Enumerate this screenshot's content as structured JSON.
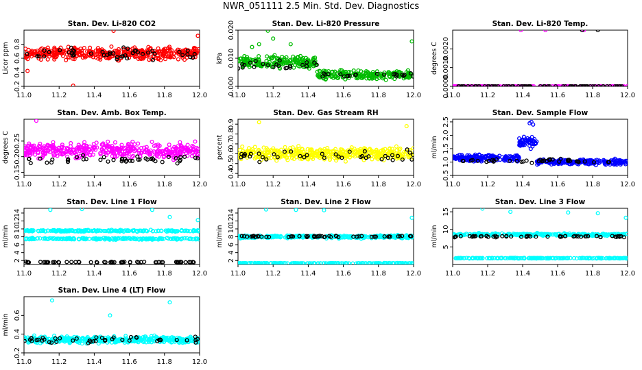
{
  "title": "NWR_051111  2.5 Min. Std. Dev. Diagnostics",
  "colors": {
    "co2": "#ff0000",
    "pressure": "#00bb00",
    "temp": "#ff00ff",
    "amb": "#ff00ff",
    "rh": "#ffff00",
    "sample": "#0000ff",
    "line": "#00ffff",
    "reference": "#000000"
  },
  "chart_data": [
    {
      "id": "co2",
      "type": "scatter",
      "title": "Stan. Dev. Li-820 CO2",
      "ylabel": "Licor ppm",
      "xlim": [
        11.0,
        12.0
      ],
      "ylim": [
        0.2,
        1.0
      ],
      "xticks": [
        "11.0",
        "11.2",
        "11.4",
        "11.6",
        "11.8",
        "12.0"
      ],
      "yticks": [
        "0.2",
        "0.4",
        "0.6",
        "0.8"
      ],
      "ytick_values": [
        0.2,
        0.4,
        0.6,
        0.8
      ],
      "series": [
        {
          "color_key": "co2",
          "bands": [
            {
              "mean": 0.67,
              "spread": 0.12,
              "count": 420
            }
          ],
          "outliers": [
            [
              11.51,
              0.99
            ],
            [
              11.28,
              0.21
            ],
            [
              11.02,
              0.42
            ],
            [
              11.99,
              0.92
            ]
          ]
        },
        {
          "color_key": "reference",
          "bands": [
            {
              "mean": 0.66,
              "spread": 0.12,
              "count": 45
            }
          ]
        }
      ]
    },
    {
      "id": "pressure",
      "type": "scatter",
      "title": "Stan. Dev. Li-820 Pressure",
      "ylabel": "kPa",
      "xlim": [
        11.0,
        12.0
      ],
      "ylim": [
        0.0,
        0.02
      ],
      "xticks": [
        "11.0",
        "11.2",
        "11.4",
        "11.6",
        "11.8",
        "12.0"
      ],
      "yticks": [
        "0.000",
        "0.010",
        "0.020"
      ],
      "ytick_values": [
        0.0,
        0.01,
        0.02
      ],
      "series": [
        {
          "color_key": "pressure",
          "bands": [
            {
              "x0": 11.0,
              "x1": 11.45,
              "mean": 0.0085,
              "spread": 0.003,
              "count": 190
            },
            {
              "x0": 11.45,
              "x1": 12.0,
              "mean": 0.004,
              "spread": 0.0025,
              "count": 200
            }
          ],
          "outliers": [
            [
              11.17,
              0.0198
            ],
            [
              11.2,
              0.017
            ],
            [
              11.12,
              0.015
            ],
            [
              11.99,
              0.016
            ],
            [
              11.3,
              0.015
            ],
            [
              11.08,
              0.014
            ]
          ]
        },
        {
          "color_key": "reference",
          "bands": [
            {
              "x0": 11.0,
              "x1": 11.45,
              "mean": 0.0075,
              "spread": 0.002,
              "count": 22
            },
            {
              "x0": 11.45,
              "x1": 12.0,
              "mean": 0.004,
              "spread": 0.0015,
              "count": 22
            }
          ]
        }
      ]
    },
    {
      "id": "temp",
      "type": "scatter",
      "title": "Stan. Dev. Li-820 Temp.",
      "ylabel": "degrees C",
      "xlim": [
        11.0,
        12.0
      ],
      "ylim": [
        0.0,
        0.003
      ],
      "xticks": [
        "11.0",
        "11.2",
        "11.4",
        "11.6",
        "11.8",
        "12.0"
      ],
      "yticks": [
        "0.0000",
        "0.0010",
        "0.0020"
      ],
      "ytick_values": [
        0.0,
        0.001,
        0.002
      ],
      "series": [
        {
          "color_key": "temp",
          "bands": [
            {
              "mean": 0.0,
              "spread": 0.0,
              "count": 180
            }
          ],
          "outliers": [
            [
              11.39,
              0.003
            ],
            [
              11.53,
              0.003
            ],
            [
              11.75,
              0.003
            ],
            [
              11.75,
              0.0
            ]
          ]
        },
        {
          "color_key": "reference",
          "bands": [
            {
              "mean": 0.0,
              "spread": 0.0,
              "count": 80
            }
          ],
          "outliers": [
            [
              11.74,
              0.003
            ],
            [
              11.83,
              0.003
            ]
          ]
        }
      ]
    },
    {
      "id": "amb",
      "type": "scatter",
      "title": "Stan. Dev. Amb. Box Temp.",
      "ylabel": "degrees C",
      "xlim": [
        11.0,
        12.0
      ],
      "ylim": [
        0.14,
        0.32
      ],
      "xticks": [
        "11.0",
        "11.2",
        "11.4",
        "11.6",
        "11.8",
        "12.0"
      ],
      "yticks": [
        "0.15",
        "0.20",
        "0.25"
      ],
      "ytick_values": [
        0.15,
        0.2,
        0.25
      ],
      "series": [
        {
          "color_key": "amb",
          "bands": [
            {
              "mean": 0.22,
              "spread": 0.035,
              "count": 420
            }
          ],
          "outliers": [
            [
              11.07,
              0.315
            ]
          ]
        },
        {
          "color_key": "reference",
          "bands": [
            {
              "mean": 0.19,
              "spread": 0.02,
              "count": 45
            }
          ]
        }
      ]
    },
    {
      "id": "rh",
      "type": "scatter",
      "title": "Stan. Dev. Gas Stream RH",
      "ylabel": "percent",
      "xlim": [
        11.0,
        12.0
      ],
      "ylim": [
        0.38,
        0.95
      ],
      "xticks": [
        "11.0",
        "11.2",
        "11.4",
        "11.6",
        "11.8",
        "12.0"
      ],
      "yticks": [
        "0.4",
        "0.5",
        "0.6",
        "0.7",
        "0.8",
        "0.9"
      ],
      "ytick_values": [
        0.4,
        0.5,
        0.6,
        0.7,
        0.8,
        0.9
      ],
      "series": [
        {
          "color_key": "rh",
          "bands": [
            {
              "mean": 0.6,
              "spread": 0.09,
              "count": 420
            }
          ],
          "outliers": [
            [
              11.12,
              0.92
            ],
            [
              11.96,
              0.88
            ]
          ]
        },
        {
          "color_key": "reference",
          "bands": [
            {
              "mean": 0.58,
              "spread": 0.08,
              "count": 40
            }
          ]
        }
      ]
    },
    {
      "id": "sample",
      "type": "scatter",
      "title": "Stan. Dev. Sample Flow",
      "ylabel": "ml/min",
      "xlim": [
        11.0,
        12.0
      ],
      "ylim": [
        0.5,
        2.6
      ],
      "xticks": [
        "11.0",
        "11.2",
        "11.4",
        "11.6",
        "11.8",
        "12.0"
      ],
      "yticks": [
        "0.5",
        "1.0",
        "1.5",
        "2.0",
        "2.5"
      ],
      "ytick_values": [
        0.5,
        1.0,
        1.5,
        2.0,
        2.5
      ],
      "series": [
        {
          "color_key": "sample",
          "bands": [
            {
              "x0": 11.0,
              "x1": 11.38,
              "mean": 1.15,
              "spread": 0.18,
              "count": 170
            },
            {
              "x0": 11.38,
              "x1": 11.48,
              "mean": 1.75,
              "spread": 0.3,
              "count": 45
            },
            {
              "x0": 11.48,
              "x1": 12.0,
              "mean": 1.0,
              "spread": 0.15,
              "count": 200
            }
          ],
          "outliers": [
            [
              11.44,
              2.45
            ],
            [
              11.45,
              2.5
            ],
            [
              11.46,
              2.4
            ]
          ]
        },
        {
          "color_key": "reference",
          "bands": [
            {
              "mean": 1.05,
              "spread": 0.1,
              "count": 40
            }
          ]
        }
      ]
    },
    {
      "id": "line1",
      "type": "scatter",
      "title": "Stan. Dev. Line 1 Flow",
      "ylabel": "ml/min",
      "xlim": [
        11.0,
        12.0
      ],
      "ylim": [
        1.0,
        15.2
      ],
      "xticks": [
        "11.0",
        "11.2",
        "11.4",
        "11.6",
        "11.8",
        "12.0"
      ],
      "yticks": [
        "2",
        "4",
        "6",
        "8",
        "10",
        "12",
        "14"
      ],
      "ytick_values": [
        2,
        4,
        6,
        8,
        10,
        12,
        14
      ],
      "series": [
        {
          "color_key": "line",
          "bands": [
            {
              "mean": 9.5,
              "spread": 0.3,
              "count": 220
            },
            {
              "mean": 7.5,
              "spread": 0.3,
              "count": 220
            }
          ],
          "outliers": [
            [
              11.15,
              14.8
            ],
            [
              11.33,
              15.0
            ],
            [
              11.73,
              14.8
            ],
            [
              11.99,
              12.2
            ],
            [
              11.83,
              13.0
            ]
          ]
        },
        {
          "color_key": "reference",
          "bands": [
            {
              "mean": 1.6,
              "spread": 0.15,
              "count": 60
            }
          ]
        }
      ]
    },
    {
      "id": "line2",
      "type": "scatter",
      "title": "Stan. Dev. Line 2 Flow",
      "ylabel": "ml/min",
      "xlim": [
        11.0,
        12.0
      ],
      "ylim": [
        1.0,
        15.2
      ],
      "xticks": [
        "11.0",
        "11.2",
        "11.4",
        "11.6",
        "11.8",
        "12.0"
      ],
      "yticks": [
        "2",
        "4",
        "6",
        "8",
        "10",
        "12",
        "14"
      ],
      "ytick_values": [
        2,
        4,
        6,
        8,
        10,
        12,
        14
      ],
      "series": [
        {
          "color_key": "line",
          "bands": [
            {
              "mean": 8.0,
              "spread": 0.5,
              "count": 300
            },
            {
              "mean": 1.3,
              "spread": 0.1,
              "count": 200
            }
          ],
          "outliers": [
            [
              11.16,
              14.9
            ],
            [
              11.33,
              14.8
            ],
            [
              11.49,
              14.7
            ],
            [
              11.99,
              12.8
            ]
          ]
        },
        {
          "color_key": "reference",
          "bands": [
            {
              "mean": 8.1,
              "spread": 0.3,
              "count": 55
            }
          ]
        }
      ]
    },
    {
      "id": "line3",
      "type": "scatter",
      "title": "Stan. Dev. Line 3 Flow",
      "ylabel": "ml/min",
      "xlim": [
        11.0,
        12.0
      ],
      "ylim": [
        0.0,
        16.0
      ],
      "xticks": [
        "11.0",
        "11.2",
        "11.4",
        "11.6",
        "11.8",
        "12.0"
      ],
      "yticks": [
        "5",
        "10",
        "15"
      ],
      "ytick_values": [
        5,
        10,
        15
      ],
      "series": [
        {
          "color_key": "line",
          "bands": [
            {
              "mean": 8.5,
              "spread": 0.5,
              "count": 300
            },
            {
              "mean": 1.8,
              "spread": 0.15,
              "count": 200
            }
          ],
          "outliers": [
            [
              11.17,
              15.9
            ],
            [
              11.33,
              15.0
            ],
            [
              11.66,
              14.8
            ],
            [
              11.83,
              14.6
            ],
            [
              11.99,
              13.3
            ]
          ]
        },
        {
          "color_key": "reference",
          "bands": [
            {
              "mean": 8.0,
              "spread": 0.35,
              "count": 55
            }
          ]
        }
      ]
    },
    {
      "id": "line4",
      "type": "scatter",
      "title": "Stan. Dev. Line 4 (LT) Flow",
      "ylabel": "ml/min",
      "xlim": [
        11.0,
        12.0
      ],
      "ylim": [
        0.2,
        0.8
      ],
      "xticks": [
        "11.0",
        "11.2",
        "11.4",
        "11.6",
        "11.8",
        "12.0"
      ],
      "yticks": [
        "0.2",
        "0.4",
        "0.6"
      ],
      "ytick_values": [
        0.2,
        0.4,
        0.6
      ],
      "series": [
        {
          "color_key": "line",
          "bands": [
            {
              "mean": 0.34,
              "spread": 0.05,
              "count": 420
            }
          ],
          "outliers": [
            [
              11.16,
              0.76
            ],
            [
              11.49,
              0.6
            ],
            [
              11.83,
              0.74
            ]
          ]
        },
        {
          "color_key": "reference",
          "bands": [
            {
              "mean": 0.34,
              "spread": 0.05,
              "count": 45
            }
          ]
        }
      ]
    }
  ]
}
